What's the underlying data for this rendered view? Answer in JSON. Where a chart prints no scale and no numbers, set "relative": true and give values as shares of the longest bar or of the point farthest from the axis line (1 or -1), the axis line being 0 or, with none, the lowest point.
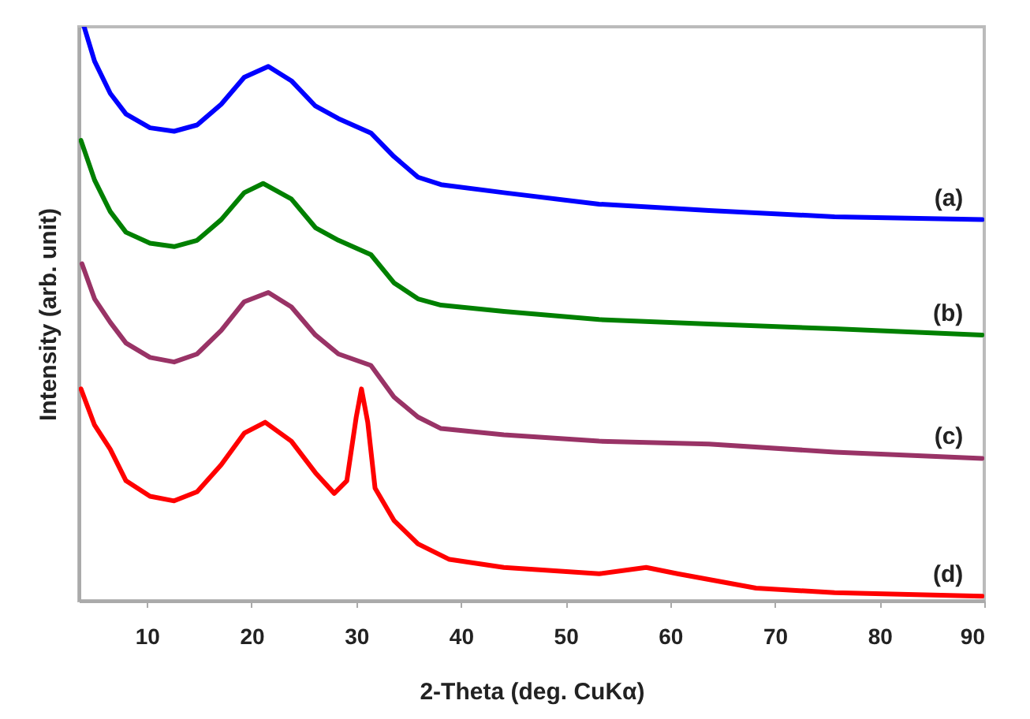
{
  "chart_data": {
    "type": "line",
    "relative": true,
    "xlabel": "2-Theta (deg. CuKα)",
    "ylabel": "Intensity (arb. unit)",
    "xlim": [
      3.5,
      90
    ],
    "xticks": [
      10,
      20,
      30,
      40,
      50,
      60,
      70,
      80,
      90
    ],
    "tick_labels": "x",
    "grid": false,
    "marker": "none",
    "line_style": "solid",
    "series": [
      {
        "name": "(a)",
        "color": "#0000ff",
        "x": [
          4.0,
          5.0,
          6.5,
          8.0,
          10.3,
          12.6,
          14.8,
          17.1,
          19.3,
          21.6,
          23.8,
          26.1,
          28.3,
          31.4,
          33.6,
          35.9,
          38.1,
          44.1,
          53.2,
          63.7,
          75.7,
          89.8
        ],
        "values": [
          1.0,
          0.94,
          0.884,
          0.848,
          0.824,
          0.818,
          0.829,
          0.865,
          0.912,
          0.931,
          0.906,
          0.862,
          0.84,
          0.815,
          0.774,
          0.738,
          0.725,
          0.711,
          0.691,
          0.68,
          0.669,
          0.664
        ]
      },
      {
        "name": "(b)",
        "color": "#008000",
        "x": [
          3.7,
          5.0,
          6.5,
          8.0,
          10.3,
          12.6,
          14.8,
          17.1,
          19.3,
          21.1,
          23.8,
          26.1,
          28.3,
          31.4,
          33.6,
          35.9,
          38.1,
          44.1,
          53.2,
          63.7,
          75.7,
          89.8
        ],
        "values": [
          0.802,
          0.733,
          0.678,
          0.642,
          0.623,
          0.617,
          0.628,
          0.664,
          0.711,
          0.727,
          0.7,
          0.65,
          0.628,
          0.603,
          0.554,
          0.526,
          0.515,
          0.504,
          0.49,
          0.482,
          0.474,
          0.463
        ]
      },
      {
        "name": "(c)",
        "color": "#993366",
        "x": [
          3.8,
          5.0,
          6.5,
          8.0,
          10.3,
          12.6,
          14.8,
          17.1,
          19.3,
          21.6,
          23.8,
          26.1,
          28.3,
          31.4,
          33.6,
          35.9,
          38.1,
          44.1,
          53.2,
          63.7,
          75.7,
          89.8
        ],
        "values": [
          0.587,
          0.526,
          0.485,
          0.449,
          0.424,
          0.416,
          0.43,
          0.471,
          0.521,
          0.537,
          0.512,
          0.463,
          0.43,
          0.41,
          0.355,
          0.32,
          0.3,
          0.289,
          0.278,
          0.273,
          0.259,
          0.248
        ]
      },
      {
        "name": "(d)",
        "color": "#ff0000",
        "x": [
          3.7,
          5.0,
          6.5,
          8.0,
          10.3,
          12.6,
          14.8,
          17.1,
          19.3,
          21.3,
          23.8,
          26.1,
          27.9,
          29.1,
          30.0,
          30.5,
          31.1,
          31.8,
          33.6,
          35.9,
          38.9,
          44.1,
          53.2,
          57.7,
          60.7,
          68.2,
          75.7,
          89.8
        ],
        "values": [
          0.369,
          0.306,
          0.264,
          0.209,
          0.182,
          0.174,
          0.19,
          0.237,
          0.292,
          0.311,
          0.278,
          0.223,
          0.187,
          0.209,
          0.32,
          0.369,
          0.311,
          0.196,
          0.14,
          0.099,
          0.072,
          0.058,
          0.047,
          0.058,
          0.047,
          0.022,
          0.014,
          0.008
        ]
      }
    ]
  }
}
